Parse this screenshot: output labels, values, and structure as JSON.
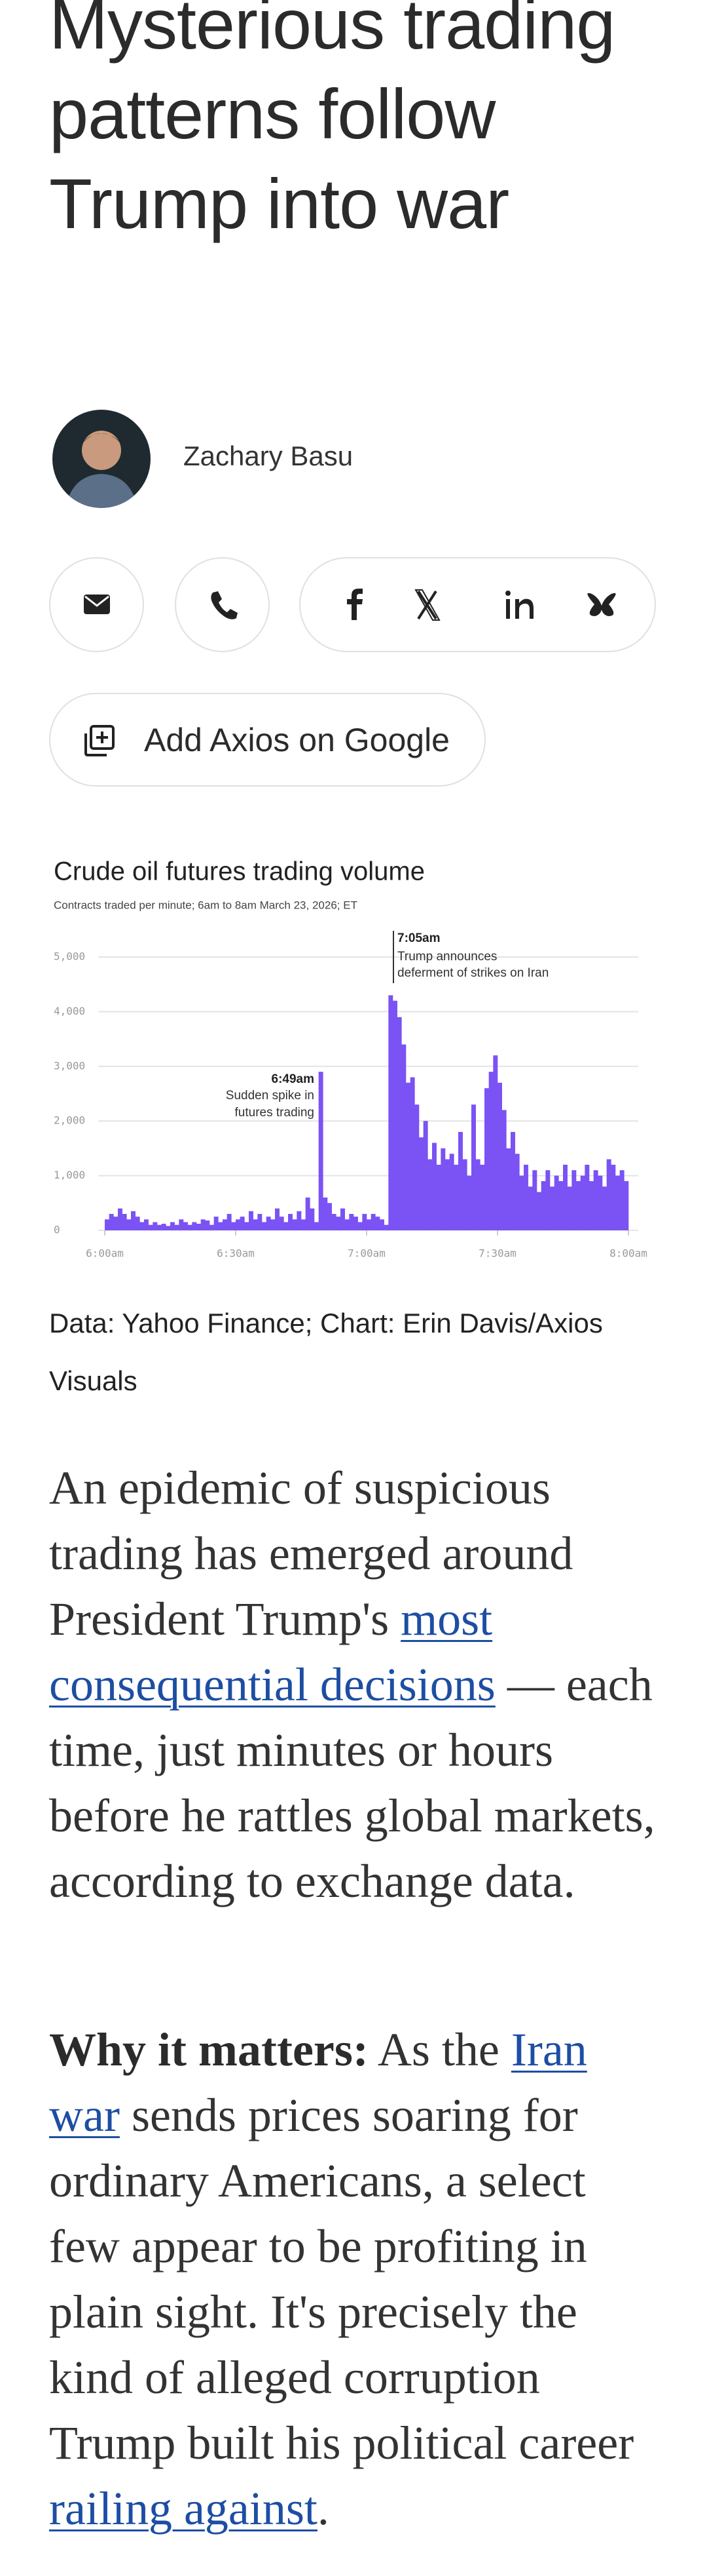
{
  "headline": "Mysterious trading patterns follow Trump into war",
  "author": "Zachary Basu",
  "google_button": "Add Axios on Google",
  "chart_data": {
    "type": "bar",
    "title": "Crude oil futures trading volume",
    "subtitle": "Contracts traded per minute; 6am to 8am March 23, 2026; ET",
    "color": "#7b52f4",
    "grid": true,
    "xlim": [
      0,
      120
    ],
    "xticks": [
      {
        "value": 0,
        "label": "6:00am"
      },
      {
        "value": 30,
        "label": "6:30am"
      },
      {
        "value": 60,
        "label": "7:00am"
      },
      {
        "value": 90,
        "label": "7:30am"
      },
      {
        "value": 120,
        "label": "8:00am"
      }
    ],
    "ylim": [
      0,
      5000
    ],
    "yticks": [
      0,
      {
        "value": 1000,
        "label": "1,000"
      },
      {
        "value": 2000,
        "label": "2,000"
      },
      {
        "value": 3000,
        "label": "3,000"
      },
      {
        "value": 4000,
        "label": "4,000"
      },
      {
        "value": 5000,
        "label": "5,000"
      }
    ],
    "x": [
      0,
      1,
      2,
      3,
      4,
      5,
      6,
      7,
      8,
      9,
      10,
      11,
      12,
      13,
      14,
      15,
      16,
      17,
      18,
      19,
      20,
      21,
      22,
      23,
      24,
      25,
      26,
      27,
      28,
      29,
      30,
      31,
      32,
      33,
      34,
      35,
      36,
      37,
      38,
      39,
      40,
      41,
      42,
      43,
      44,
      45,
      46,
      47,
      48,
      49,
      50,
      51,
      52,
      53,
      54,
      55,
      56,
      57,
      58,
      59,
      60,
      61,
      62,
      63,
      64,
      65,
      66,
      67,
      68,
      69,
      70,
      71,
      72,
      73,
      74,
      75,
      76,
      77,
      78,
      79,
      80,
      81,
      82,
      83,
      84,
      85,
      86,
      87,
      88,
      89,
      90,
      91,
      92,
      93,
      94,
      95,
      96,
      97,
      98,
      99,
      100,
      101,
      102,
      103,
      104,
      105,
      106,
      107,
      108,
      109,
      110,
      111,
      112,
      113,
      114,
      115,
      116,
      117,
      118,
      119
    ],
    "values": [
      200,
      300,
      250,
      400,
      300,
      200,
      350,
      250,
      150,
      200,
      100,
      150,
      100,
      120,
      80,
      150,
      100,
      200,
      150,
      100,
      150,
      120,
      200,
      180,
      100,
      250,
      150,
      200,
      300,
      150,
      200,
      250,
      150,
      350,
      200,
      300,
      150,
      250,
      200,
      400,
      250,
      150,
      300,
      200,
      350,
      200,
      600,
      400,
      150,
      2900,
      600,
      500,
      300,
      250,
      400,
      200,
      300,
      250,
      150,
      300,
      200,
      300,
      250,
      200,
      100,
      4300,
      4200,
      3900,
      3400,
      2700,
      2800,
      2300,
      1700,
      2000,
      1300,
      1600,
      1200,
      1500,
      1300,
      1400,
      1200,
      1800,
      1300,
      1000,
      2300,
      1300,
      1200,
      2600,
      2900,
      3200,
      2700,
      2200,
      1500,
      1800,
      1400,
      1000,
      1200,
      800,
      1100,
      700,
      900,
      1100,
      800,
      1000,
      900,
      1200,
      800,
      1100,
      900,
      1000,
      1200,
      900,
      1100,
      1000,
      800,
      1300,
      1200,
      1000,
      1100,
      900
    ],
    "annotations": [
      {
        "time": "7:05am",
        "text": "Trump announces deferment of strikes on Iran",
        "lines": [
          "Trump announces",
          "deferment of strikes on Iran"
        ]
      },
      {
        "time": "6:49am",
        "lines": [
          "Sudden spike in",
          "futures trading"
        ]
      }
    ]
  },
  "caption": "Data: Yahoo Finance; Chart: Erin Davis/Axios Visuals",
  "paragraphs": [
    {
      "segments": [
        {
          "text": "An epidemic of suspicious trading has emerged around President Trump's "
        },
        {
          "text": "most consequential decisions",
          "link": true
        },
        {
          "text": " — each time, just minutes or hours before he rattles global markets, according to exchange data."
        }
      ]
    },
    {
      "segments": [
        {
          "text": "Why it matters:",
          "bold": true
        },
        {
          "text": " As the "
        },
        {
          "text": "Iran war",
          "link": true
        },
        {
          "text": " sends prices soaring for ordinary Americans, a select few appear to be profiting in plain sight. It's precisely the kind of alleged corruption Trump built his political career "
        },
        {
          "text": "railing against",
          "link": true
        },
        {
          "text": "."
        }
      ]
    }
  ]
}
